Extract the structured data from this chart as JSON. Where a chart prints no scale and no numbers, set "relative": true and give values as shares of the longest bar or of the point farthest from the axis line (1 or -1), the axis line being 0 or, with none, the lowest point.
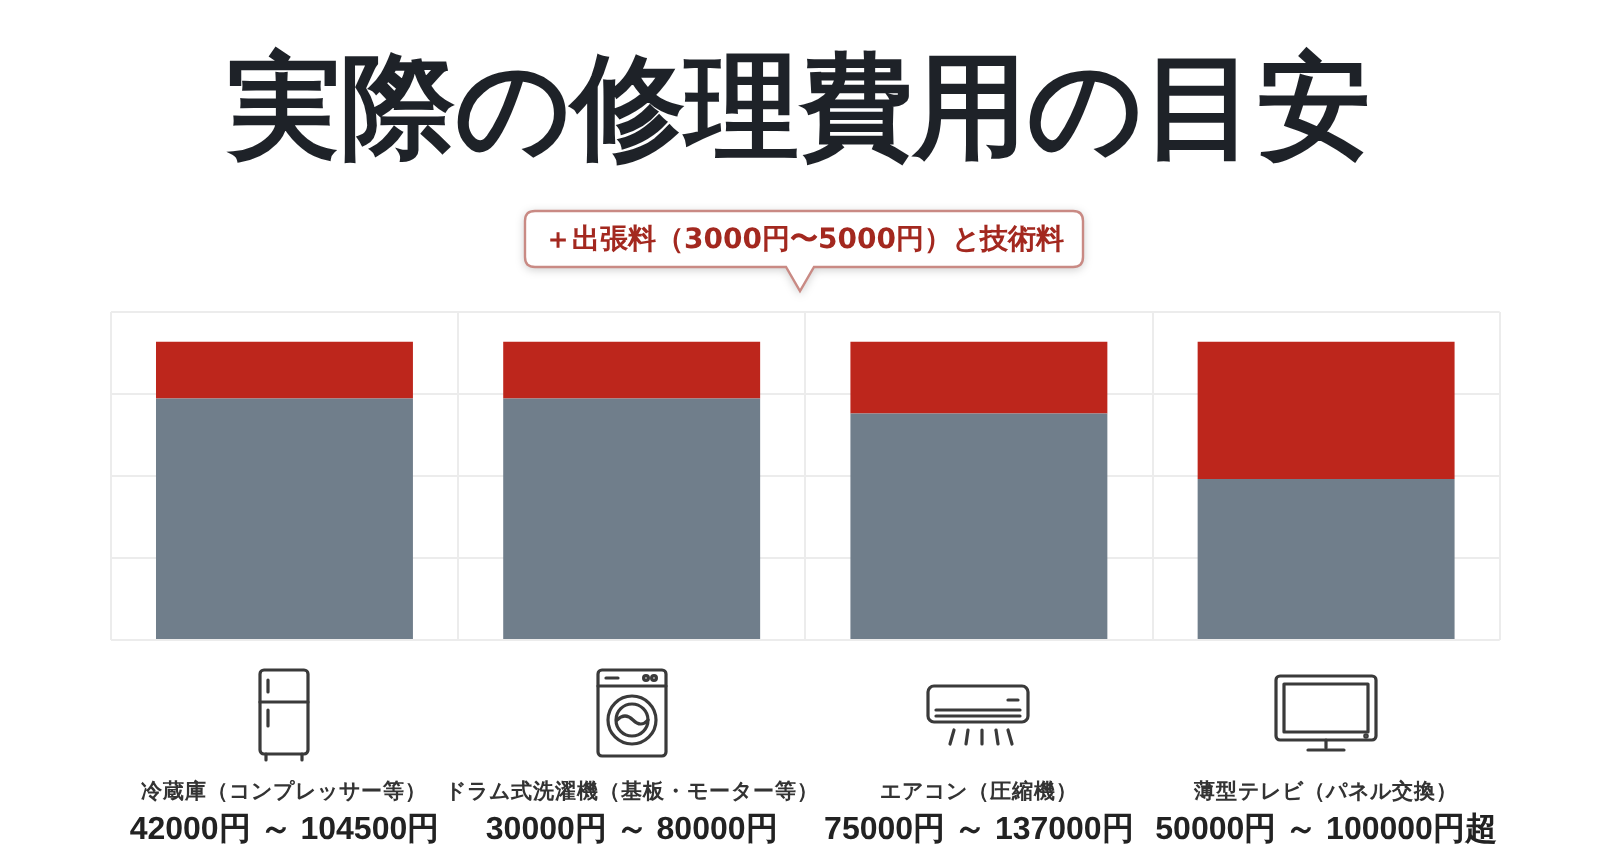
{
  "chart_data": {
    "type": "bar",
    "title": "実際の修理費用の目安",
    "categories": [
      "冷蔵庫（コンプレッサー等）",
      "ドラム式洗濯機（基板・モーター等）",
      "エアコン（圧縮機）",
      "薄型テレビ（パネル交換）"
    ],
    "series": [
      {
        "color": "#707e8b",
        "values": [
          0.81,
          0.81,
          0.76,
          0.54
        ]
      },
      {
        "color": "#bd261c",
        "values": [
          0.19,
          0.19,
          0.24,
          0.46
        ]
      }
    ],
    "stacked": true,
    "relative": true,
    "grid": true,
    "annotations": [
      "＋出張料（3000円〜5000円）と技術料",
      "42000円 ～ 104500円",
      "30000円 ～ 80000円",
      "75000円 ～ 137000円",
      "50000円 ～ 100000円超"
    ]
  }
}
